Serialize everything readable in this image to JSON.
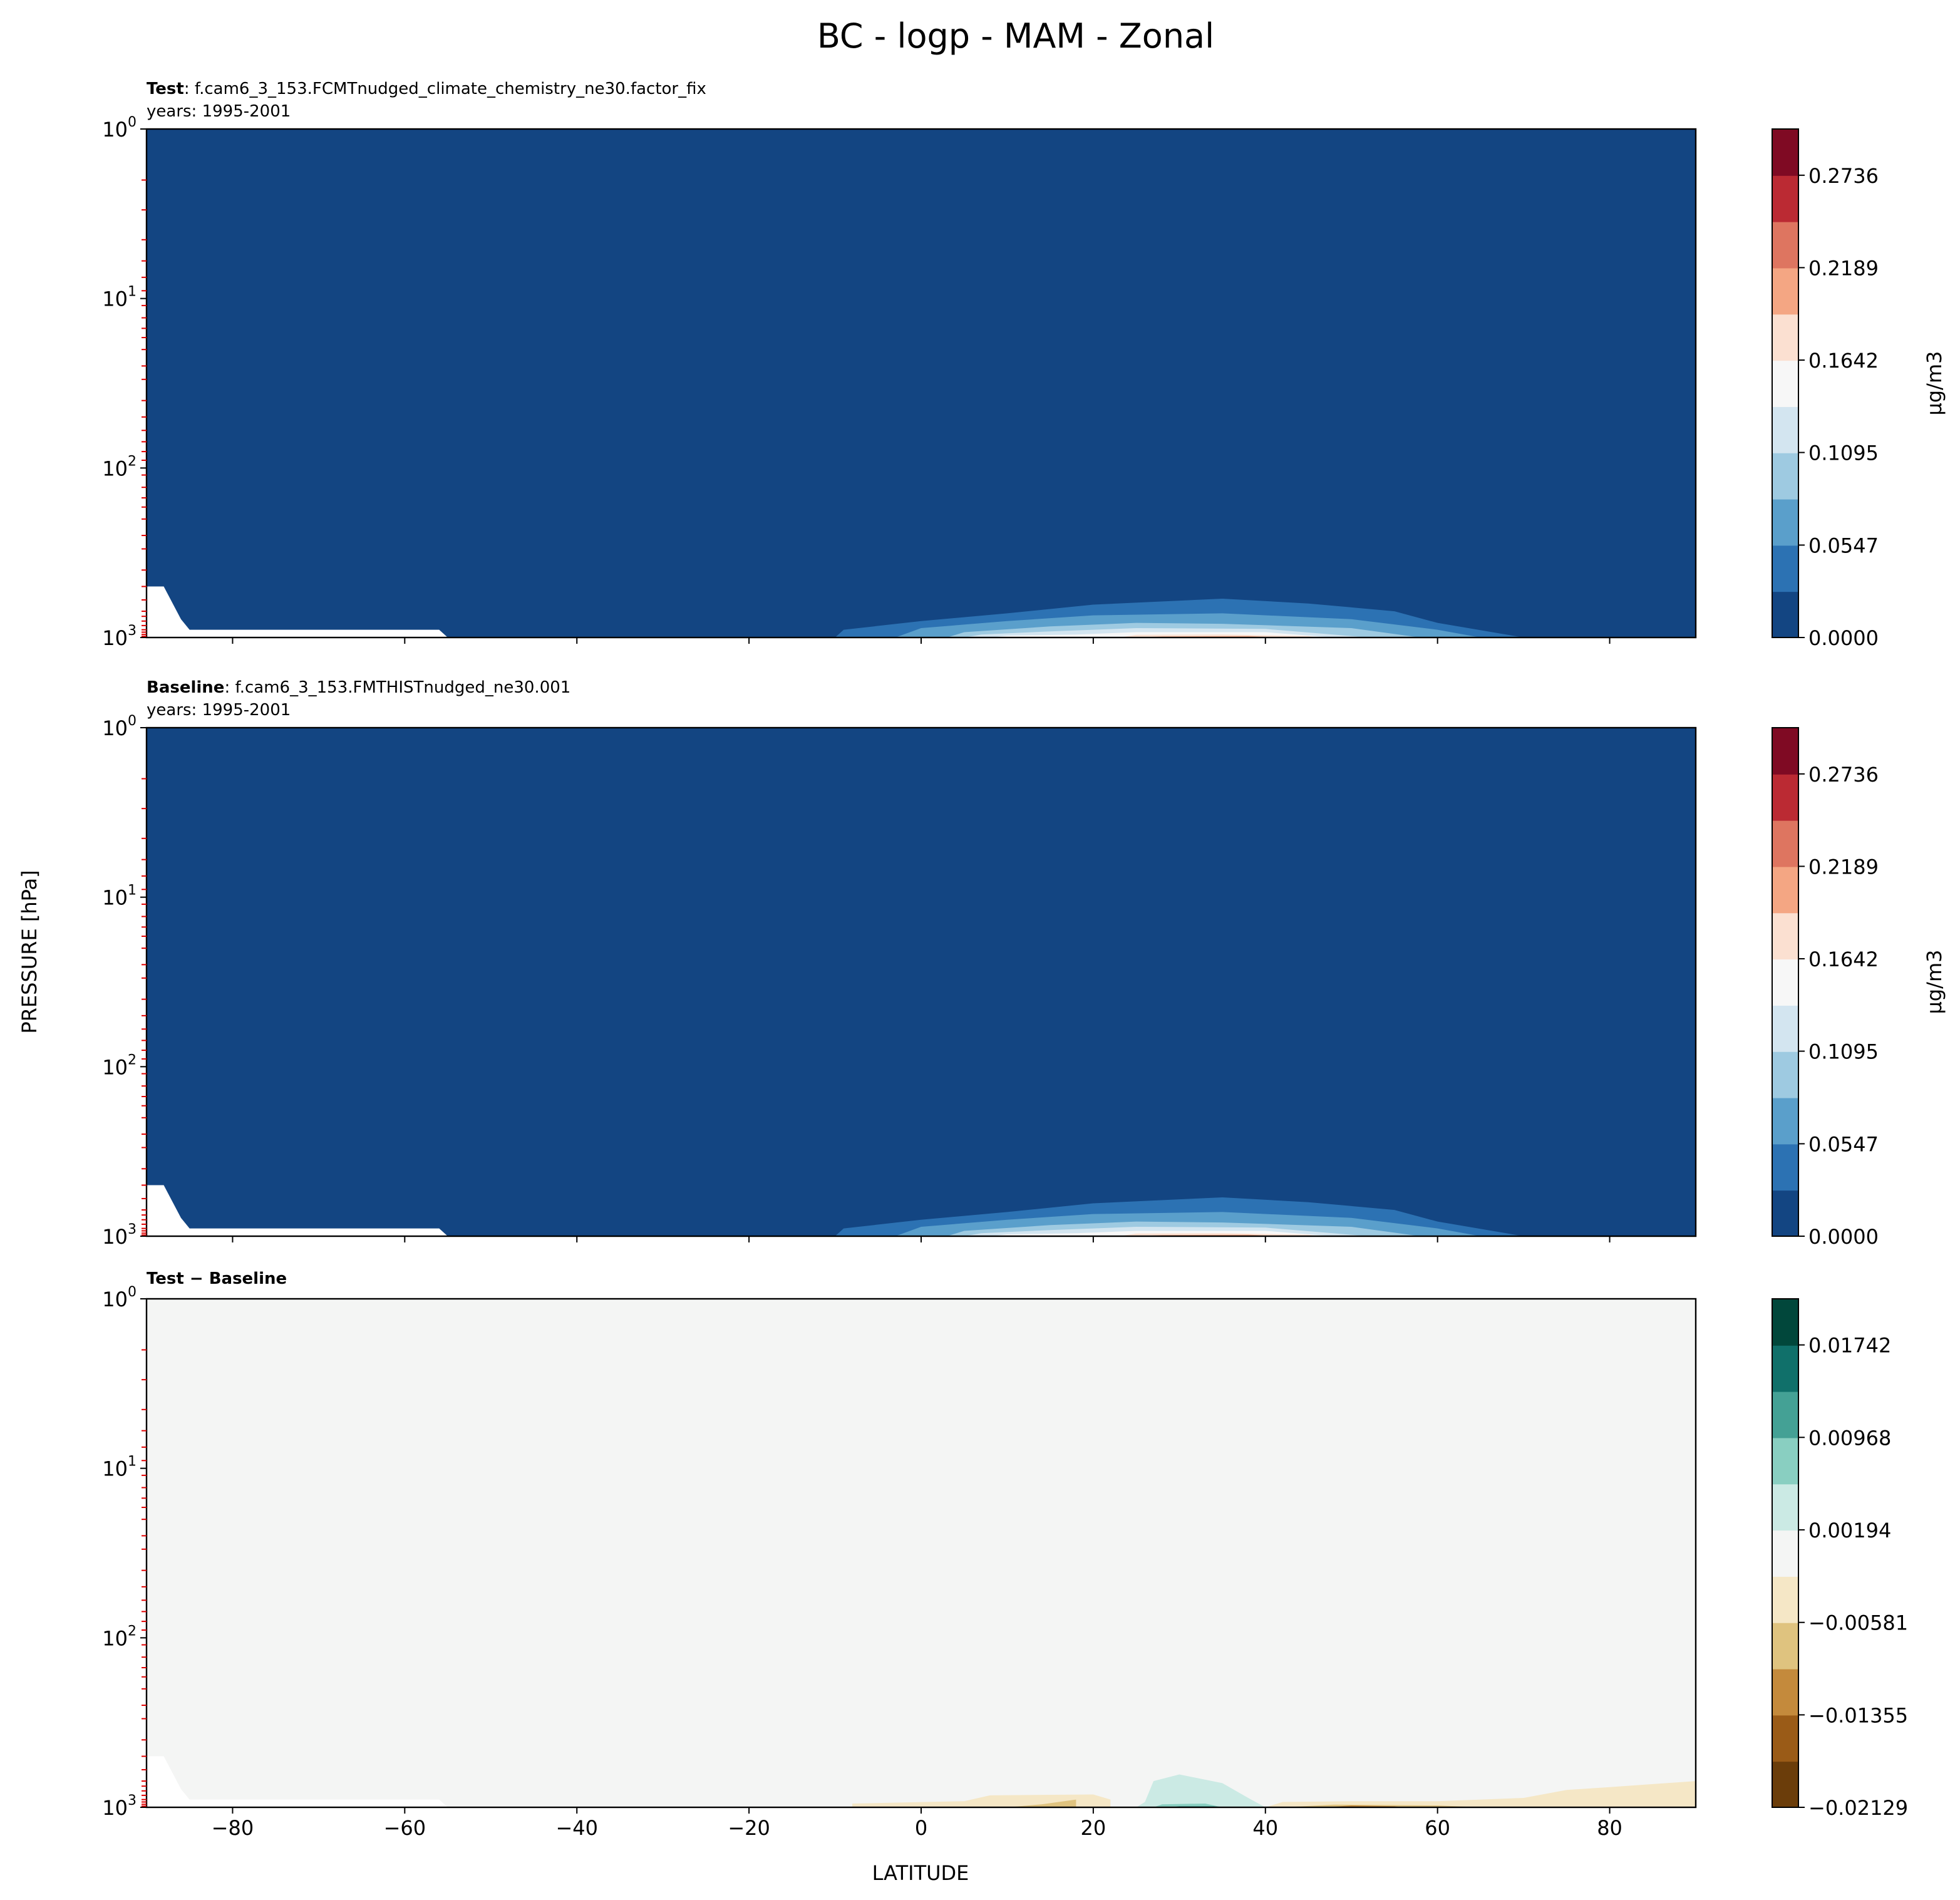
{
  "figure": {
    "title": "BC - logp - MAM - Zonal",
    "ylabel": "PRESSURE [hPa]",
    "xlabel": "LATITUDE",
    "xticks": [
      "−80",
      "−60",
      "−40",
      "−20",
      "0",
      "20",
      "40",
      "60",
      "80"
    ],
    "xtick_values": [
      -80,
      -60,
      -40,
      -20,
      0,
      20,
      40,
      60,
      80
    ],
    "yticks": [
      {
        "base": "10",
        "exp": "0",
        "value": 1
      },
      {
        "base": "10",
        "exp": "1",
        "value": 10
      },
      {
        "base": "10",
        "exp": "2",
        "value": 100
      },
      {
        "base": "10",
        "exp": "3",
        "value": 1000
      }
    ]
  },
  "chart_data": [
    {
      "type": "heatmap",
      "title_bold": "Test",
      "title_rest": ": f.cam6_3_153.FCMTnudged_climate_chemistry_ne30.factor_fix",
      "subtitle": "years: 1995-2001",
      "xlim": [
        -90,
        90
      ],
      "ylim": [
        1000,
        1
      ],
      "yscale": "log",
      "colorbar": {
        "label": "μg/m3",
        "levels_min": 0,
        "levels_step": 0.02736,
        "colors": [
          "#134582",
          "#2c72b3",
          "#5a9fcb",
          "#9ecae1",
          "#d3e5f0",
          "#f7f7f7",
          "#fbe0d1",
          "#f4a683",
          "#de7560",
          "#bb2a33",
          "#7f0a23"
        ],
        "ticks": [
          "0.0000",
          "0.0547",
          "0.1095",
          "0.1642",
          "0.2189",
          "0.2736"
        ],
        "tick_values": [
          0,
          0.0547,
          0.1095,
          0.1642,
          0.2189,
          0.2736
        ]
      },
      "background_level": 0,
      "regions": [
        {
          "level": 1,
          "pts": [
            [
              -10,
              1000
            ],
            [
              -9,
              900
            ],
            [
              0,
              800
            ],
            [
              10,
              720
            ],
            [
              20,
              640
            ],
            [
              35,
              590
            ],
            [
              45,
              630
            ],
            [
              55,
              700
            ],
            [
              60,
              820
            ],
            [
              70,
              1000
            ]
          ]
        },
        {
          "level": 2,
          "pts": [
            [
              -3,
              1000
            ],
            [
              0,
              880
            ],
            [
              10,
              800
            ],
            [
              20,
              740
            ],
            [
              35,
              720
            ],
            [
              50,
              780
            ],
            [
              60,
              900
            ],
            [
              65,
              1000
            ]
          ]
        },
        {
          "level": 3,
          "pts": [
            [
              3,
              1000
            ],
            [
              5,
              930
            ],
            [
              15,
              860
            ],
            [
              25,
              820
            ],
            [
              35,
              830
            ],
            [
              50,
              880
            ],
            [
              58,
              1000
            ]
          ]
        },
        {
          "level": 4,
          "pts": [
            [
              5,
              1000
            ],
            [
              7,
              960
            ],
            [
              15,
              920
            ],
            [
              25,
              880
            ],
            [
              40,
              890
            ],
            [
              52,
              1000
            ]
          ]
        },
        {
          "level": 5,
          "pts": [
            [
              8,
              1000
            ],
            [
              10,
              975
            ],
            [
              18,
              960
            ],
            [
              25,
              930
            ],
            [
              40,
              930
            ],
            [
              48,
              1000
            ]
          ]
        },
        {
          "level": 6,
          "pts": [
            [
              23,
              1000
            ],
            [
              25,
              965
            ],
            [
              35,
              960
            ],
            [
              45,
              980
            ],
            [
              46,
              1000
            ]
          ]
        },
        {
          "level": 7,
          "pts": [
            [
              25,
              1000
            ],
            [
              28,
              985
            ],
            [
              38,
              980
            ],
            [
              42,
              1000
            ]
          ]
        },
        {
          "level": 8,
          "pts": [
            [
              30,
              1000
            ],
            [
              33,
              990
            ],
            [
              40,
              995
            ],
            [
              40,
              1000
            ]
          ]
        },
        {
          "level": 9,
          "pts": [
            [
              33,
              1000
            ],
            [
              36,
              995
            ],
            [
              38,
              1000
            ]
          ]
        }
      ]
    },
    {
      "type": "heatmap",
      "title_bold": "Baseline",
      "title_rest": ": f.cam6_3_153.FMTHISTnudged_ne30.001",
      "subtitle": "years: 1995-2001",
      "xlim": [
        -90,
        90
      ],
      "ylim": [
        1000,
        1
      ],
      "yscale": "log",
      "colorbar": {
        "label": "μg/m3",
        "levels_min": 0,
        "levels_step": 0.02736,
        "colors": [
          "#134582",
          "#2c72b3",
          "#5a9fcb",
          "#9ecae1",
          "#d3e5f0",
          "#f7f7f7",
          "#fbe0d1",
          "#f4a683",
          "#de7560",
          "#bb2a33",
          "#7f0a23"
        ],
        "ticks": [
          "0.0000",
          "0.0547",
          "0.1095",
          "0.1642",
          "0.2189",
          "0.2736"
        ],
        "tick_values": [
          0,
          0.0547,
          0.1095,
          0.1642,
          0.2189,
          0.2736
        ]
      },
      "background_level": 0,
      "regions": [
        {
          "level": 1,
          "pts": [
            [
              -10,
              1000
            ],
            [
              -9,
              900
            ],
            [
              0,
              800
            ],
            [
              10,
              720
            ],
            [
              20,
              640
            ],
            [
              35,
              590
            ],
            [
              45,
              630
            ],
            [
              55,
              700
            ],
            [
              60,
              820
            ],
            [
              70,
              1000
            ]
          ]
        },
        {
          "level": 2,
          "pts": [
            [
              -3,
              1000
            ],
            [
              0,
              880
            ],
            [
              10,
              800
            ],
            [
              20,
              740
            ],
            [
              35,
              720
            ],
            [
              50,
              780
            ],
            [
              60,
              900
            ],
            [
              65,
              1000
            ]
          ]
        },
        {
          "level": 3,
          "pts": [
            [
              3,
              1000
            ],
            [
              5,
              930
            ],
            [
              15,
              860
            ],
            [
              25,
              820
            ],
            [
              35,
              830
            ],
            [
              50,
              880
            ],
            [
              58,
              1000
            ]
          ]
        },
        {
          "level": 4,
          "pts": [
            [
              5,
              1000
            ],
            [
              7,
              960
            ],
            [
              15,
              920
            ],
            [
              25,
              880
            ],
            [
              40,
              890
            ],
            [
              52,
              1000
            ]
          ]
        },
        {
          "level": 5,
          "pts": [
            [
              8,
              1000
            ],
            [
              10,
              975
            ],
            [
              18,
              960
            ],
            [
              25,
              930
            ],
            [
              40,
              930
            ],
            [
              48,
              1000
            ]
          ]
        },
        {
          "level": 6,
          "pts": [
            [
              23,
              1000
            ],
            [
              25,
              965
            ],
            [
              35,
              960
            ],
            [
              45,
              980
            ],
            [
              46,
              1000
            ]
          ]
        },
        {
          "level": 7,
          "pts": [
            [
              25,
              1000
            ],
            [
              28,
              985
            ],
            [
              38,
              980
            ],
            [
              42,
              1000
            ]
          ]
        },
        {
          "level": 8,
          "pts": [
            [
              30,
              1000
            ],
            [
              33,
              990
            ],
            [
              40,
              995
            ],
            [
              40,
              1000
            ]
          ]
        },
        {
          "level": 9,
          "pts": [
            [
              33,
              1000
            ],
            [
              36,
              995
            ],
            [
              38,
              1000
            ]
          ]
        }
      ]
    },
    {
      "type": "heatmap",
      "title_bold": "Test − Baseline",
      "title_rest": "",
      "subtitle": "",
      "xlim": [
        -90,
        90
      ],
      "ylim": [
        1000,
        1
      ],
      "yscale": "log",
      "colorbar": {
        "label": "",
        "levels_min": -0.02129,
        "levels_step": 0.00387,
        "colors": [
          "#6b3d0a",
          "#9a5b17",
          "#c48a3c",
          "#dfc37f",
          "#f5e7c6",
          "#f4f5f4",
          "#cbeae4",
          "#89cfc1",
          "#44a195",
          "#10706a",
          "#01473b"
        ],
        "ticks": [
          "−0.02129",
          "−0.01355",
          "−0.00581",
          "0.00194",
          "0.00968",
          "0.01742"
        ],
        "tick_values": [
          -0.02129,
          -0.01355,
          -0.00581,
          0.00194,
          0.00968,
          0.01742
        ]
      },
      "background_level": 5,
      "regions": [
        {
          "level": 4,
          "pts": [
            [
              -8,
              1000
            ],
            [
              -8,
              950
            ],
            [
              5,
              920
            ],
            [
              8,
              850
            ],
            [
              20,
              840
            ],
            [
              22,
              900
            ],
            [
              22,
              1000
            ]
          ]
        },
        {
          "level": 3,
          "pts": [
            [
              10,
              1000
            ],
            [
              14,
              960
            ],
            [
              18,
              900
            ],
            [
              18,
              1000
            ]
          ]
        },
        {
          "level": 6,
          "pts": [
            [
              25,
              1000
            ],
            [
              26,
              930
            ],
            [
              27,
              700
            ],
            [
              30,
              640
            ],
            [
              35,
              720
            ],
            [
              38,
              880
            ],
            [
              40,
              1000
            ]
          ]
        },
        {
          "level": 7,
          "pts": [
            [
              27,
              1000
            ],
            [
              28,
              960
            ],
            [
              33,
              950
            ],
            [
              35,
              1000
            ]
          ]
        },
        {
          "level": 8,
          "pts": [
            [
              29,
              1000
            ],
            [
              30,
              985
            ],
            [
              34,
              985
            ],
            [
              35,
              1000
            ]
          ]
        },
        {
          "level": 4,
          "pts": [
            [
              40,
              1000
            ],
            [
              42,
              930
            ],
            [
              50,
              920
            ],
            [
              60,
              920
            ],
            [
              70,
              880
            ],
            [
              75,
              790
            ],
            [
              80,
              760
            ],
            [
              90,
              700
            ],
            [
              90,
              990
            ],
            [
              70,
              1000
            ]
          ]
        },
        {
          "level": 3,
          "pts": [
            [
              42,
              1000
            ],
            [
              48,
              965
            ],
            [
              60,
              975
            ],
            [
              65,
              1000
            ]
          ]
        },
        {
          "level": 2,
          "pts": [
            [
              47,
              1000
            ],
            [
              50,
              975
            ],
            [
              55,
              985
            ],
            [
              56,
              1000
            ]
          ]
        },
        {
          "level": 1,
          "pts": [
            [
              52,
              1000
            ],
            [
              54,
              993
            ],
            [
              56,
              1000
            ]
          ]
        }
      ]
    }
  ]
}
